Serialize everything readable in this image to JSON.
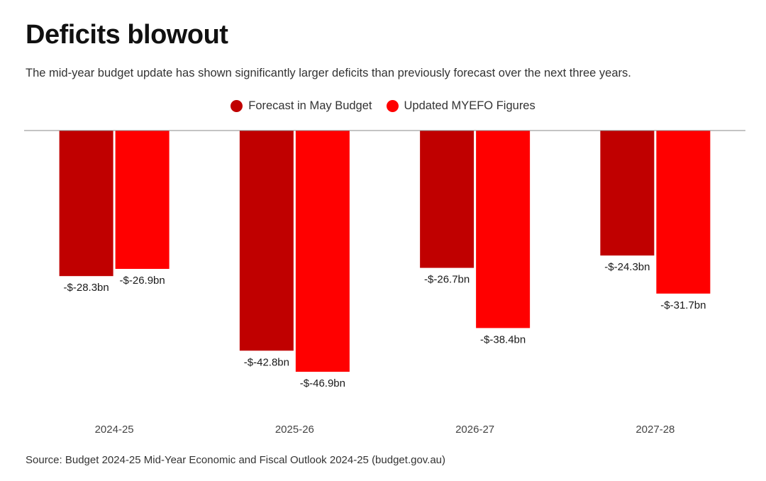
{
  "title": "Deficits blowout",
  "subtitle": "The mid-year budget update has shown significantly larger deficits than previously forecast over the next three years.",
  "legend": [
    {
      "label": "Forecast in May Budget",
      "color": "#c00000"
    },
    {
      "label": "Updated MYEFO Figures",
      "color": "#ff0000"
    }
  ],
  "source": "Source: Budget 2024-25 Mid-Year Economic and Fiscal Outlook 2024-25 (budget.gov.au)",
  "chart_data": {
    "type": "bar",
    "title": "Deficits blowout",
    "categories": [
      "2024-25",
      "2025-26",
      "2026-27",
      "2027-28"
    ],
    "series": [
      {
        "name": "Forecast in May Budget",
        "color": "#c00000",
        "values": [
          -28.3,
          -42.8,
          -26.7,
          -24.3
        ],
        "labels": [
          "-$-28.3bn",
          "-$-42.8bn",
          "-$-26.7bn",
          "-$-24.3bn"
        ]
      },
      {
        "name": "Updated MYEFO Figures",
        "color": "#ff0000",
        "values": [
          -26.9,
          -46.9,
          -38.4,
          -31.7
        ],
        "labels": [
          "-$-26.9bn",
          "-$-46.9bn",
          "-$-38.4bn",
          "-$-31.7bn"
        ]
      }
    ],
    "xlabel": "",
    "ylabel": "",
    "ylim": [
      -55,
      0
    ],
    "grid": false,
    "legend_position": "top-center",
    "baseline_color": "#888888"
  }
}
